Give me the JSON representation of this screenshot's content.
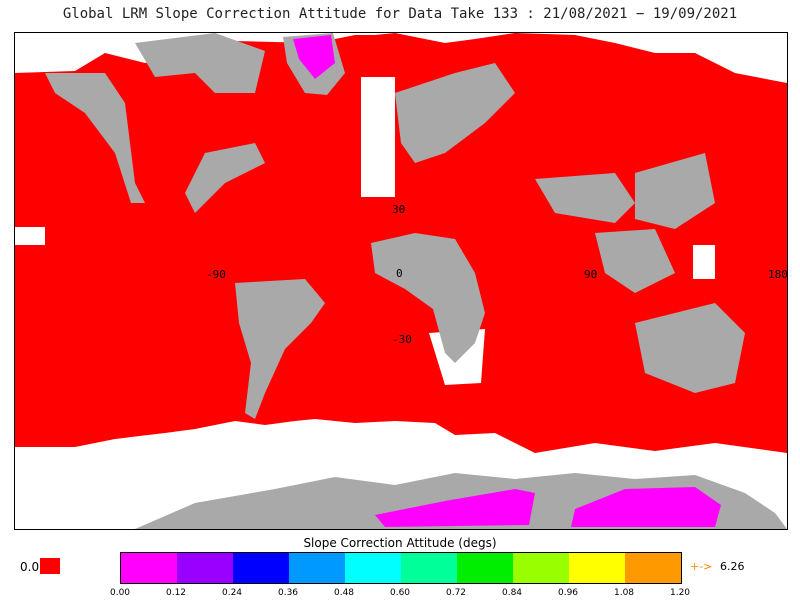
{
  "title": "Global LRM Slope Correction Attitude for Data Take 133 : 21/08/2021 − 19/09/2021",
  "map": {
    "lat_labels": [
      "30",
      "0",
      "-30"
    ],
    "lon_labels": [
      "-90",
      "0",
      "90",
      "180"
    ],
    "fill_color": "#ff0000",
    "land_color": "#a9a9a9",
    "nodata_color": "#ffffff"
  },
  "colorbar": {
    "title": "Slope Correction Attitude (degs)",
    "colors": [
      "#ff00ff",
      "#9900ff",
      "#0000ff",
      "#0099ff",
      "#00ffff",
      "#00ff99",
      "#00ee00",
      "#99ff00",
      "#ffff00",
      "#ff9900"
    ],
    "ticks": [
      "0.00",
      "0.12",
      "0.24",
      "0.36",
      "0.48",
      "0.60",
      "0.72",
      "0.84",
      "0.96",
      "1.08",
      "1.20"
    ],
    "zero_label": "0.0",
    "zero_color": "#ff0000",
    "over_arrow": "+->",
    "over_value": "6.26"
  }
}
